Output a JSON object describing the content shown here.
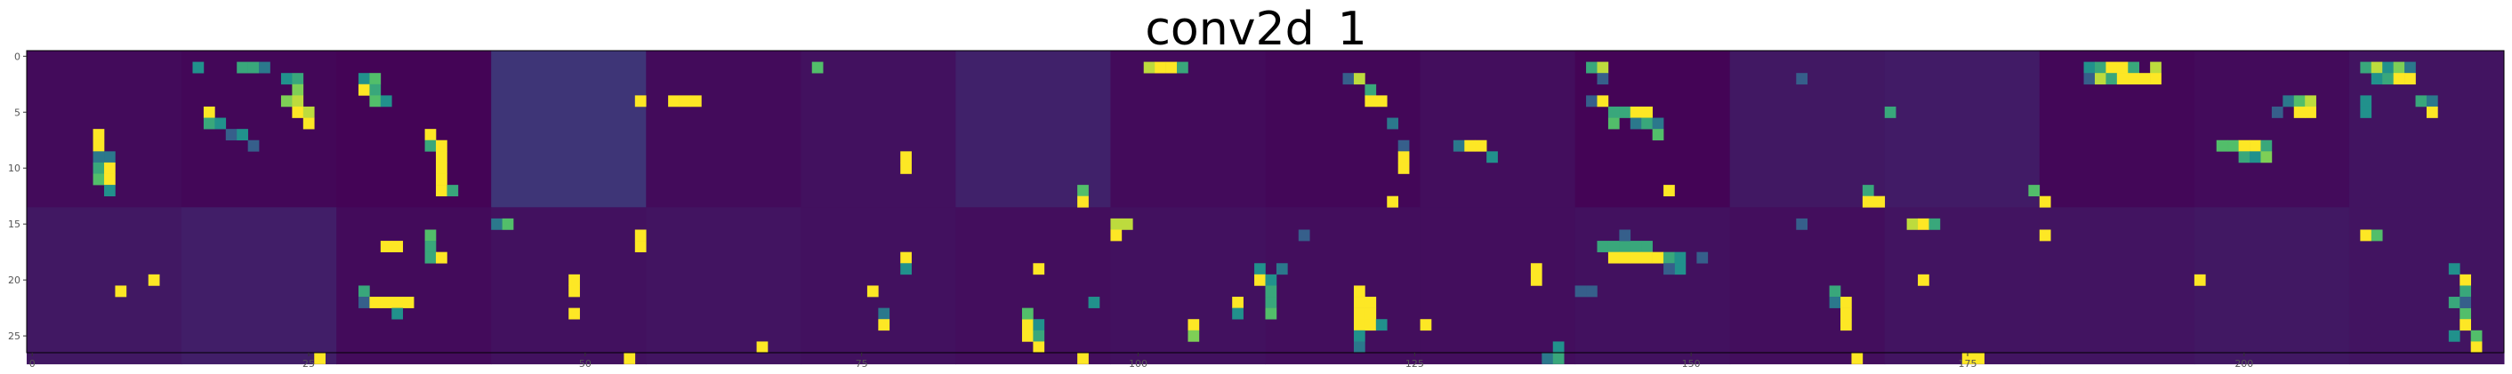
{
  "chart_data": {
    "type": "heatmap",
    "title": "conv2d_1",
    "xlabel": "",
    "ylabel": "",
    "colormap": "viridis",
    "colors": {
      "low": "#440154",
      "mid": "#21918c",
      "high": "#fde725"
    },
    "grid": false,
    "xlim": [
      0,
      224
    ],
    "ylim": [
      27,
      0
    ],
    "x_ticks": [
      0,
      25,
      50,
      75,
      100,
      125,
      150,
      175,
      200
    ],
    "y_ticks": [
      0,
      5,
      10,
      15,
      20,
      25
    ],
    "grid_layout": {
      "rows": 2,
      "cols": 16,
      "tile_size": 14
    },
    "tile_background": [
      [
        0.03,
        0.02,
        0.01,
        0.16,
        0.03,
        0.05,
        0.1,
        0.03,
        0.02,
        0.04,
        0.01,
        0.07,
        0.08,
        0.02,
        0.03,
        0.06
      ],
      [
        0.07,
        0.09,
        0.03,
        0.05,
        0.06,
        0.05,
        0.04,
        0.05,
        0.04,
        0.04,
        0.05,
        0.04,
        0.06,
        0.06,
        0.07,
        0.06
      ]
    ],
    "activations": [
      [
        15,
        1,
        0.5
      ],
      [
        19,
        1,
        0.6
      ],
      [
        20,
        1,
        0.6
      ],
      [
        21,
        1,
        0.4
      ],
      [
        23,
        2,
        0.5
      ],
      [
        24,
        2,
        0.6
      ],
      [
        24,
        3,
        0.8
      ],
      [
        23,
        4,
        0.8
      ],
      [
        24,
        4,
        0.9
      ],
      [
        24,
        5,
        1
      ],
      [
        25,
        5,
        0.9
      ],
      [
        25,
        6,
        1
      ],
      [
        16,
        5,
        1
      ],
      [
        16,
        6,
        0.6
      ],
      [
        17,
        6,
        0.5
      ],
      [
        18,
        7,
        0.3
      ],
      [
        19,
        7,
        0.5
      ],
      [
        20,
        8,
        0.3
      ],
      [
        6,
        7,
        1
      ],
      [
        6,
        8,
        1
      ],
      [
        6,
        9,
        0.4
      ],
      [
        7,
        9,
        0.4
      ],
      [
        6,
        10,
        0.6
      ],
      [
        7,
        10,
        1
      ],
      [
        6,
        11,
        0.7
      ],
      [
        7,
        11,
        1
      ],
      [
        7,
        12,
        0.5
      ],
      [
        30,
        2,
        0.5
      ],
      [
        31,
        2,
        0.7
      ],
      [
        30,
        3,
        1
      ],
      [
        31,
        3,
        0.6
      ],
      [
        31,
        4,
        0.7
      ],
      [
        32,
        4,
        0.5
      ],
      [
        36,
        7,
        1
      ],
      [
        36,
        8,
        0.6
      ],
      [
        37,
        8,
        1
      ],
      [
        37,
        9,
        1
      ],
      [
        37,
        10,
        1
      ],
      [
        37,
        11,
        1
      ],
      [
        37,
        12,
        1
      ],
      [
        38,
        12,
        0.6
      ],
      [
        55,
        4,
        1
      ],
      [
        58,
        4,
        1
      ],
      [
        59,
        4,
        1
      ],
      [
        60,
        4,
        1
      ],
      [
        71,
        1,
        0.7
      ],
      [
        79,
        9,
        1
      ],
      [
        79,
        10,
        1
      ],
      [
        95,
        12,
        0.7
      ],
      [
        95,
        13,
        1
      ],
      [
        101,
        1,
        0.9
      ],
      [
        102,
        1,
        1
      ],
      [
        103,
        1,
        1
      ],
      [
        104,
        1,
        0.6
      ],
      [
        119,
        2,
        0.3
      ],
      [
        120,
        2,
        0.9
      ],
      [
        121,
        3,
        0.6
      ],
      [
        121,
        4,
        1
      ],
      [
        122,
        4,
        1
      ],
      [
        123,
        6,
        0.4
      ],
      [
        124,
        8,
        0.3
      ],
      [
        124,
        9,
        1
      ],
      [
        124,
        10,
        1
      ],
      [
        123,
        13,
        1
      ],
      [
        129,
        8,
        0.4
      ],
      [
        130,
        8,
        1
      ],
      [
        131,
        8,
        1
      ],
      [
        132,
        9,
        0.5
      ],
      [
        141,
        1,
        0.6
      ],
      [
        142,
        1,
        0.9
      ],
      [
        142,
        2,
        0.3
      ],
      [
        141,
        4,
        0.3
      ],
      [
        142,
        4,
        1
      ],
      [
        143,
        5,
        0.6
      ],
      [
        144,
        5,
        0.6
      ],
      [
        145,
        5,
        1
      ],
      [
        146,
        5,
        1
      ],
      [
        143,
        6,
        0.7
      ],
      [
        145,
        6,
        0.4
      ],
      [
        146,
        6,
        0.6
      ],
      [
        147,
        6,
        0.4
      ],
      [
        147,
        7,
        0.7
      ],
      [
        148,
        12,
        1
      ],
      [
        160,
        2,
        0.3
      ],
      [
        168,
        5,
        0.6
      ],
      [
        186,
        1,
        0.5
      ],
      [
        187,
        1,
        0.6
      ],
      [
        188,
        1,
        1
      ],
      [
        189,
        1,
        1
      ],
      [
        190,
        1,
        0.6
      ],
      [
        192,
        1,
        0.9
      ],
      [
        186,
        2,
        0.3
      ],
      [
        187,
        2,
        0.9
      ],
      [
        188,
        2,
        0.6
      ],
      [
        189,
        2,
        1
      ],
      [
        190,
        2,
        1
      ],
      [
        191,
        2,
        1
      ],
      [
        192,
        2,
        1
      ],
      [
        204,
        4,
        0.4
      ],
      [
        205,
        4,
        0.7
      ],
      [
        206,
        4,
        0.9
      ],
      [
        205,
        5,
        1
      ],
      [
        206,
        5,
        1
      ],
      [
        203,
        5,
        0.3
      ],
      [
        198,
        8,
        0.7
      ],
      [
        199,
        8,
        0.7
      ],
      [
        200,
        8,
        1
      ],
      [
        201,
        8,
        1
      ],
      [
        202,
        8,
        0.6
      ],
      [
        200,
        9,
        0.6
      ],
      [
        201,
        9,
        0.5
      ],
      [
        202,
        9,
        0.8
      ],
      [
        211,
        1,
        0.6
      ],
      [
        212,
        1,
        0.9
      ],
      [
        213,
        1,
        0.5
      ],
      [
        214,
        1,
        0.8
      ],
      [
        215,
        1,
        0.4
      ],
      [
        212,
        2,
        0.5
      ],
      [
        213,
        2,
        0.6
      ],
      [
        214,
        2,
        1
      ],
      [
        215,
        2,
        1
      ],
      [
        211,
        4,
        0.5
      ],
      [
        211,
        5,
        0.5
      ],
      [
        216,
        4,
        0.6
      ],
      [
        217,
        4,
        0.4
      ],
      [
        217,
        5,
        1
      ],
      [
        42,
        15,
        0.4
      ],
      [
        43,
        15,
        0.7
      ],
      [
        55,
        16,
        1
      ],
      [
        55,
        17,
        1
      ],
      [
        79,
        18,
        1
      ],
      [
        79,
        19,
        0.5
      ],
      [
        91,
        19,
        1
      ],
      [
        98,
        15,
        0.9
      ],
      [
        99,
        15,
        0.9
      ],
      [
        98,
        16,
        1
      ],
      [
        96,
        22,
        0.5
      ],
      [
        32,
        17,
        1
      ],
      [
        33,
        17,
        1
      ],
      [
        36,
        16,
        0.7
      ],
      [
        36,
        17,
        0.6
      ],
      [
        36,
        18,
        0.6
      ],
      [
        37,
        18,
        1
      ],
      [
        30,
        21,
        0.6
      ],
      [
        30,
        22,
        0.3
      ],
      [
        31,
        22,
        1
      ],
      [
        32,
        22,
        1
      ],
      [
        33,
        22,
        1
      ],
      [
        34,
        22,
        1
      ],
      [
        33,
        23,
        0.5
      ],
      [
        8,
        21,
        1
      ],
      [
        11,
        20,
        1
      ],
      [
        26,
        27,
        1
      ],
      [
        49,
        20,
        1
      ],
      [
        49,
        21,
        1
      ],
      [
        49,
        23,
        1
      ],
      [
        54,
        27,
        1
      ],
      [
        76,
        21,
        1
      ],
      [
        77,
        23,
        0.4
      ],
      [
        77,
        24,
        1
      ],
      [
        90,
        24,
        1
      ],
      [
        90,
        25,
        1
      ],
      [
        91,
        24,
        0.5
      ],
      [
        91,
        25,
        0.6
      ],
      [
        91,
        26,
        1
      ],
      [
        90,
        23,
        0.7
      ],
      [
        66,
        26,
        1
      ],
      [
        95,
        27,
        1
      ],
      [
        109,
        22,
        1
      ],
      [
        109,
        23,
        0.5
      ],
      [
        111,
        19,
        0.5
      ],
      [
        111,
        20,
        1
      ],
      [
        112,
        20,
        0.5
      ],
      [
        112,
        21,
        0.6
      ],
      [
        112,
        22,
        0.6
      ],
      [
        112,
        23,
        0.7
      ],
      [
        113,
        19,
        0.4
      ],
      [
        105,
        24,
        1
      ],
      [
        105,
        25,
        0.8
      ],
      [
        115,
        16,
        0.3
      ],
      [
        120,
        21,
        1
      ],
      [
        120,
        22,
        1
      ],
      [
        120,
        23,
        1
      ],
      [
        120,
        24,
        1
      ],
      [
        121,
        22,
        1
      ],
      [
        121,
        23,
        1
      ],
      [
        121,
        24,
        1
      ],
      [
        122,
        24,
        0.5
      ],
      [
        120,
        25,
        0.5
      ],
      [
        120,
        26,
        0.4
      ],
      [
        126,
        24,
        1
      ],
      [
        137,
        27,
        0.4
      ],
      [
        138,
        27,
        0.6
      ],
      [
        138,
        26,
        0.5
      ],
      [
        142,
        17,
        0.6
      ],
      [
        143,
        17,
        0.6
      ],
      [
        144,
        17,
        0.6
      ],
      [
        145,
        17,
        0.6
      ],
      [
        146,
        17,
        0.6
      ],
      [
        143,
        18,
        1
      ],
      [
        144,
        18,
        1
      ],
      [
        145,
        18,
        1
      ],
      [
        146,
        18,
        1
      ],
      [
        147,
        18,
        1
      ],
      [
        148,
        18,
        0.6
      ],
      [
        149,
        18,
        0.5
      ],
      [
        149,
        19,
        0.5
      ],
      [
        148,
        19,
        0.3
      ],
      [
        140,
        21,
        0.3
      ],
      [
        141,
        21,
        0.3
      ],
      [
        151,
        18,
        0.3
      ],
      [
        144,
        16,
        0.3
      ],
      [
        136,
        19,
        1
      ],
      [
        136,
        20,
        1
      ],
      [
        163,
        21,
        0.6
      ],
      [
        163,
        22,
        0.4
      ],
      [
        164,
        22,
        1
      ],
      [
        164,
        23,
        1
      ],
      [
        164,
        24,
        1
      ],
      [
        165,
        27,
        1
      ],
      [
        175,
        27,
        1
      ],
      [
        176,
        27,
        1
      ],
      [
        166,
        12,
        0.6
      ],
      [
        166,
        13,
        1
      ],
      [
        167,
        13,
        1
      ],
      [
        170,
        15,
        0.9
      ],
      [
        171,
        15,
        1
      ],
      [
        172,
        15,
        0.6
      ],
      [
        160,
        15,
        0.3
      ],
      [
        171,
        20,
        1
      ],
      [
        181,
        12,
        0.7
      ],
      [
        182,
        13,
        1
      ],
      [
        182,
        16,
        1
      ],
      [
        196,
        20,
        1
      ],
      [
        211,
        16,
        1
      ],
      [
        212,
        16,
        0.7
      ],
      [
        219,
        19,
        0.5
      ],
      [
        220,
        20,
        1
      ],
      [
        220,
        21,
        0.6
      ],
      [
        219,
        22,
        0.6
      ],
      [
        220,
        23,
        0.7
      ],
      [
        220,
        24,
        1
      ],
      [
        221,
        25,
        0.7
      ],
      [
        221,
        26,
        1
      ],
      [
        220,
        22,
        0.3
      ],
      [
        219,
        25,
        0.5
      ]
    ]
  }
}
